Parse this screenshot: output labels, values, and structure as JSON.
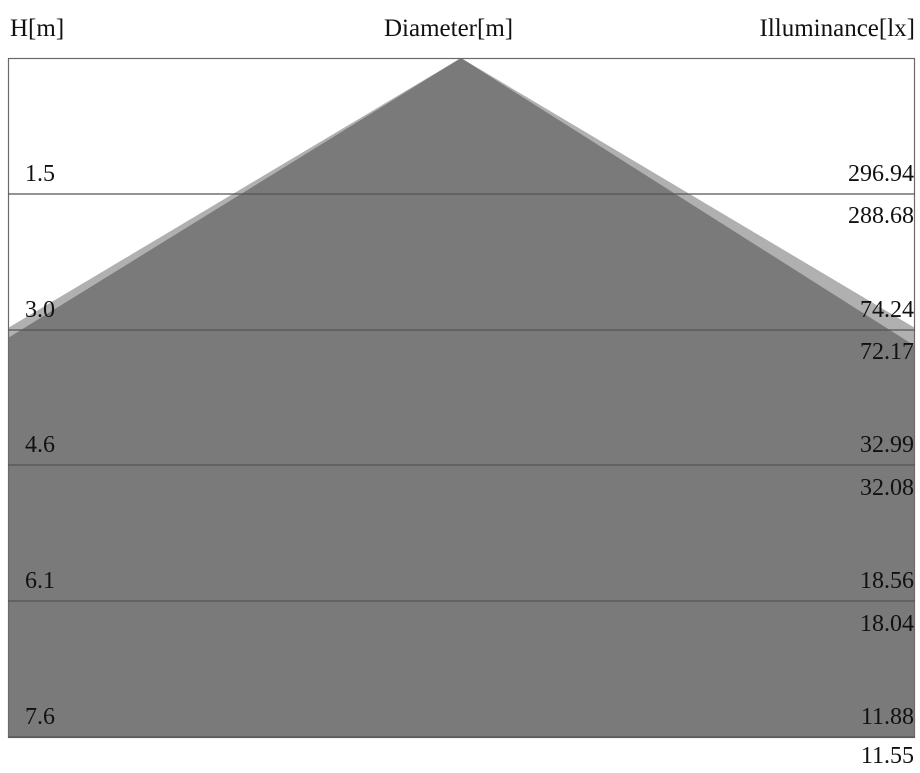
{
  "headers": {
    "height": "H[m]",
    "diameter": "Diameter[m]",
    "illuminance": "Illuminance[lx]"
  },
  "levels": [
    {
      "height": "1.5",
      "illuminance_a": "296.94",
      "illuminance_b": "288.68"
    },
    {
      "height": "3.0",
      "illuminance_a": "74.24",
      "illuminance_b": "72.17"
    },
    {
      "height": "4.6",
      "illuminance_a": "32.99",
      "illuminance_b": "32.08"
    },
    {
      "height": "6.1",
      "illuminance_a": "18.56",
      "illuminance_b": "18.04"
    },
    {
      "height": "7.6",
      "illuminance_a": "11.88",
      "illuminance_b": "11.55"
    }
  ],
  "colors": {
    "cone_back": "#b0b0b0",
    "cone_front": "#7a7a7a",
    "line": "#555555",
    "frame": "#6a6a6a"
  }
}
